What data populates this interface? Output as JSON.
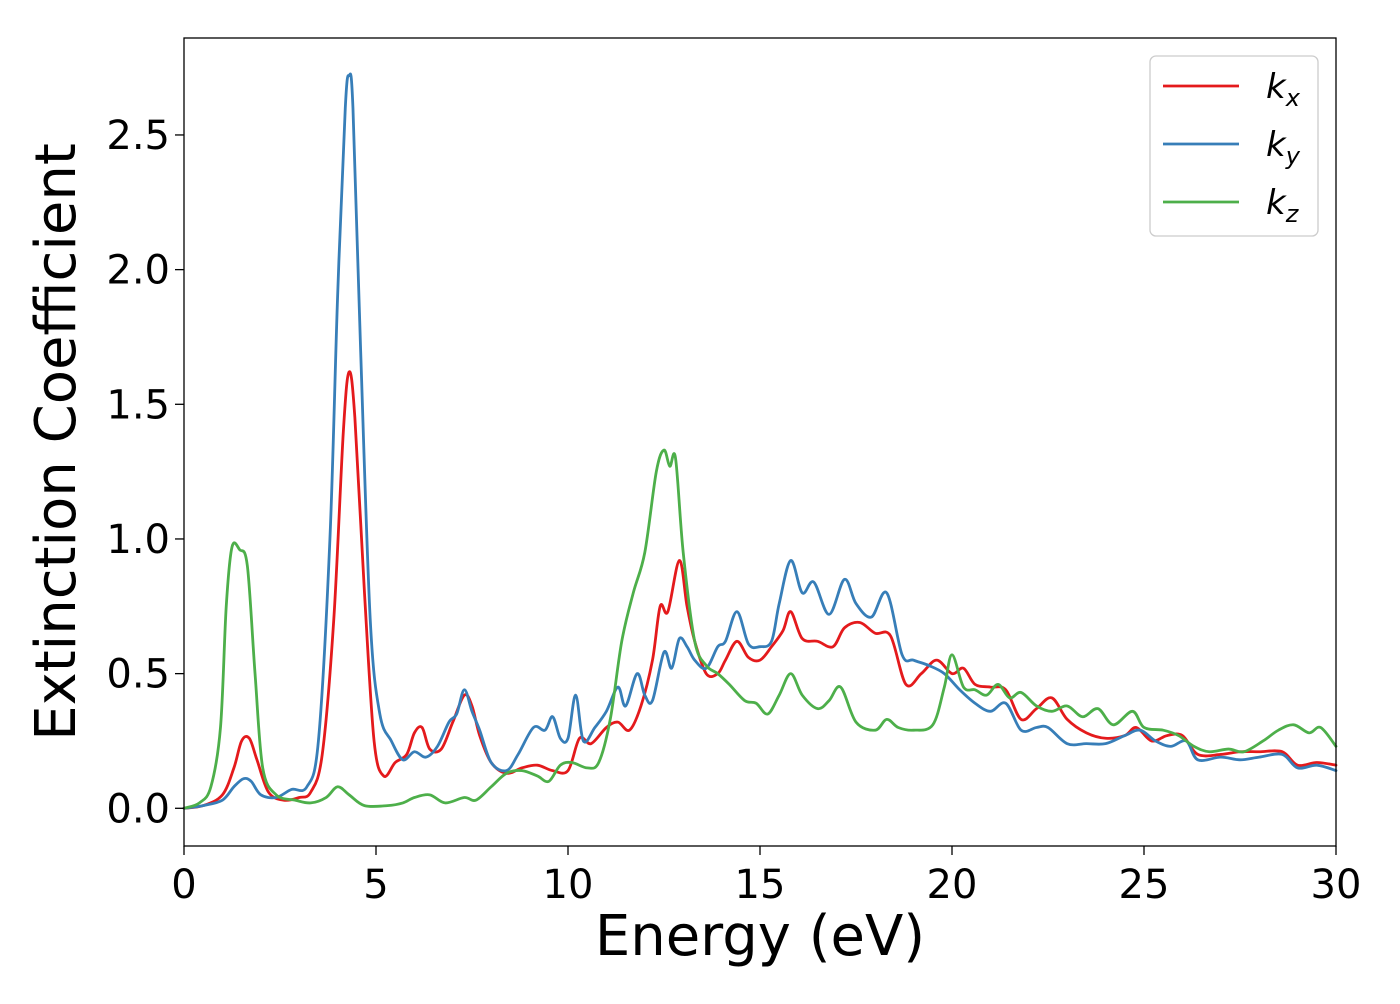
{
  "chart_data": {
    "type": "line",
    "title": "",
    "xlabel": "Energy (eV)",
    "ylabel": "Extinction Coefficient",
    "xlim": [
      0,
      30
    ],
    "ylim": [
      -0.14,
      2.86
    ],
    "xticks": [
      0,
      5,
      10,
      15,
      20,
      25,
      30
    ],
    "xtick_labels": [
      "0",
      "5",
      "10",
      "15",
      "20",
      "25",
      "30"
    ],
    "yticks": [
      0.0,
      0.5,
      1.0,
      1.5,
      2.0,
      2.5
    ],
    "ytick_labels": [
      "0.0",
      "0.5",
      "1.0",
      "1.5",
      "2.0",
      "2.5"
    ],
    "grid": false,
    "legend_position": "top-right",
    "series": [
      {
        "name": "k_x",
        "label_main": "k",
        "label_sub": "x",
        "color": "#e41a1c",
        "points": [
          [
            0,
            0
          ],
          [
            0.5,
            0.01
          ],
          [
            1.0,
            0.05
          ],
          [
            1.3,
            0.15
          ],
          [
            1.5,
            0.25
          ],
          [
            1.7,
            0.26
          ],
          [
            1.9,
            0.18
          ],
          [
            2.2,
            0.06
          ],
          [
            2.6,
            0.03
          ],
          [
            3.0,
            0.04
          ],
          [
            3.3,
            0.06
          ],
          [
            3.6,
            0.2
          ],
          [
            3.9,
            0.7
          ],
          [
            4.15,
            1.4
          ],
          [
            4.3,
            1.62
          ],
          [
            4.45,
            1.45
          ],
          [
            4.7,
            0.8
          ],
          [
            4.95,
            0.25
          ],
          [
            5.2,
            0.12
          ],
          [
            5.5,
            0.17
          ],
          [
            5.8,
            0.2
          ],
          [
            6.0,
            0.28
          ],
          [
            6.2,
            0.3
          ],
          [
            6.4,
            0.22
          ],
          [
            6.7,
            0.22
          ],
          [
            7.0,
            0.32
          ],
          [
            7.3,
            0.42
          ],
          [
            7.5,
            0.38
          ],
          [
            7.7,
            0.27
          ],
          [
            8.0,
            0.17
          ],
          [
            8.4,
            0.13
          ],
          [
            8.8,
            0.15
          ],
          [
            9.2,
            0.16
          ],
          [
            9.6,
            0.14
          ],
          [
            10.0,
            0.14
          ],
          [
            10.3,
            0.26
          ],
          [
            10.6,
            0.24
          ],
          [
            11.0,
            0.3
          ],
          [
            11.3,
            0.32
          ],
          [
            11.6,
            0.29
          ],
          [
            11.9,
            0.38
          ],
          [
            12.2,
            0.55
          ],
          [
            12.4,
            0.75
          ],
          [
            12.6,
            0.73
          ],
          [
            12.9,
            0.92
          ],
          [
            13.1,
            0.75
          ],
          [
            13.3,
            0.62
          ],
          [
            13.6,
            0.5
          ],
          [
            13.9,
            0.5
          ],
          [
            14.1,
            0.55
          ],
          [
            14.4,
            0.62
          ],
          [
            14.7,
            0.56
          ],
          [
            15.0,
            0.55
          ],
          [
            15.3,
            0.6
          ],
          [
            15.6,
            0.66
          ],
          [
            15.8,
            0.73
          ],
          [
            16.1,
            0.63
          ],
          [
            16.5,
            0.62
          ],
          [
            16.9,
            0.6
          ],
          [
            17.2,
            0.67
          ],
          [
            17.6,
            0.69
          ],
          [
            18.0,
            0.65
          ],
          [
            18.4,
            0.64
          ],
          [
            18.8,
            0.46
          ],
          [
            19.2,
            0.5
          ],
          [
            19.6,
            0.55
          ],
          [
            20.0,
            0.5
          ],
          [
            20.3,
            0.52
          ],
          [
            20.6,
            0.46
          ],
          [
            21.0,
            0.45
          ],
          [
            21.4,
            0.44
          ],
          [
            21.8,
            0.33
          ],
          [
            22.2,
            0.37
          ],
          [
            22.6,
            0.41
          ],
          [
            23.0,
            0.33
          ],
          [
            23.5,
            0.28
          ],
          [
            24.0,
            0.26
          ],
          [
            24.5,
            0.27
          ],
          [
            24.8,
            0.3
          ],
          [
            25.2,
            0.25
          ],
          [
            25.6,
            0.27
          ],
          [
            26.0,
            0.27
          ],
          [
            26.4,
            0.2
          ],
          [
            27.0,
            0.2
          ],
          [
            27.5,
            0.21
          ],
          [
            28.0,
            0.21
          ],
          [
            28.6,
            0.21
          ],
          [
            29.0,
            0.16
          ],
          [
            29.5,
            0.17
          ],
          [
            30.0,
            0.16
          ]
        ]
      },
      {
        "name": "k_y",
        "label_main": "k",
        "label_sub": "y",
        "color": "#377eb8",
        "points": [
          [
            0,
            0
          ],
          [
            0.5,
            0.01
          ],
          [
            1.0,
            0.03
          ],
          [
            1.3,
            0.08
          ],
          [
            1.55,
            0.11
          ],
          [
            1.75,
            0.1
          ],
          [
            2.0,
            0.05
          ],
          [
            2.4,
            0.04
          ],
          [
            2.8,
            0.07
          ],
          [
            3.2,
            0.08
          ],
          [
            3.5,
            0.25
          ],
          [
            3.8,
            1.0
          ],
          [
            4.0,
            1.9
          ],
          [
            4.2,
            2.6
          ],
          [
            4.3,
            2.72
          ],
          [
            4.4,
            2.6
          ],
          [
            4.6,
            1.7
          ],
          [
            4.85,
            0.7
          ],
          [
            5.1,
            0.35
          ],
          [
            5.4,
            0.25
          ],
          [
            5.7,
            0.18
          ],
          [
            6.0,
            0.21
          ],
          [
            6.3,
            0.19
          ],
          [
            6.6,
            0.23
          ],
          [
            6.9,
            0.32
          ],
          [
            7.1,
            0.35
          ],
          [
            7.3,
            0.44
          ],
          [
            7.5,
            0.36
          ],
          [
            7.7,
            0.29
          ],
          [
            8.0,
            0.17
          ],
          [
            8.4,
            0.14
          ],
          [
            8.7,
            0.2
          ],
          [
            9.1,
            0.3
          ],
          [
            9.4,
            0.29
          ],
          [
            9.6,
            0.34
          ],
          [
            9.8,
            0.26
          ],
          [
            10.0,
            0.26
          ],
          [
            10.2,
            0.42
          ],
          [
            10.4,
            0.25
          ],
          [
            10.7,
            0.3
          ],
          [
            11.0,
            0.36
          ],
          [
            11.3,
            0.45
          ],
          [
            11.5,
            0.38
          ],
          [
            11.8,
            0.5
          ],
          [
            12.0,
            0.42
          ],
          [
            12.2,
            0.4
          ],
          [
            12.5,
            0.58
          ],
          [
            12.7,
            0.52
          ],
          [
            12.9,
            0.63
          ],
          [
            13.1,
            0.6
          ],
          [
            13.3,
            0.55
          ],
          [
            13.6,
            0.52
          ],
          [
            13.9,
            0.6
          ],
          [
            14.1,
            0.62
          ],
          [
            14.4,
            0.73
          ],
          [
            14.7,
            0.61
          ],
          [
            15.0,
            0.6
          ],
          [
            15.3,
            0.62
          ],
          [
            15.5,
            0.76
          ],
          [
            15.8,
            0.92
          ],
          [
            16.1,
            0.8
          ],
          [
            16.4,
            0.84
          ],
          [
            16.8,
            0.72
          ],
          [
            17.2,
            0.85
          ],
          [
            17.5,
            0.76
          ],
          [
            17.9,
            0.71
          ],
          [
            18.3,
            0.8
          ],
          [
            18.7,
            0.57
          ],
          [
            19.0,
            0.55
          ],
          [
            19.4,
            0.53
          ],
          [
            19.8,
            0.5
          ],
          [
            20.2,
            0.44
          ],
          [
            20.6,
            0.39
          ],
          [
            21.0,
            0.36
          ],
          [
            21.4,
            0.39
          ],
          [
            21.8,
            0.29
          ],
          [
            22.2,
            0.3
          ],
          [
            22.5,
            0.3
          ],
          [
            23.0,
            0.24
          ],
          [
            23.5,
            0.24
          ],
          [
            24.0,
            0.24
          ],
          [
            24.5,
            0.27
          ],
          [
            24.9,
            0.29
          ],
          [
            25.3,
            0.25
          ],
          [
            25.7,
            0.23
          ],
          [
            26.1,
            0.25
          ],
          [
            26.4,
            0.18
          ],
          [
            27.0,
            0.19
          ],
          [
            27.5,
            0.18
          ],
          [
            28.0,
            0.19
          ],
          [
            28.6,
            0.2
          ],
          [
            29.0,
            0.15
          ],
          [
            29.5,
            0.16
          ],
          [
            30.0,
            0.14
          ]
        ]
      },
      {
        "name": "k_z",
        "label_main": "k",
        "label_sub": "z",
        "color": "#4daf4a",
        "points": [
          [
            0,
            0
          ],
          [
            0.4,
            0.02
          ],
          [
            0.7,
            0.08
          ],
          [
            0.95,
            0.3
          ],
          [
            1.1,
            0.75
          ],
          [
            1.25,
            0.97
          ],
          [
            1.45,
            0.96
          ],
          [
            1.65,
            0.9
          ],
          [
            1.85,
            0.5
          ],
          [
            2.05,
            0.15
          ],
          [
            2.4,
            0.05
          ],
          [
            2.9,
            0.03
          ],
          [
            3.3,
            0.02
          ],
          [
            3.7,
            0.04
          ],
          [
            4.0,
            0.08
          ],
          [
            4.3,
            0.05
          ],
          [
            4.7,
            0.01
          ],
          [
            5.3,
            0.01
          ],
          [
            5.7,
            0.02
          ],
          [
            6.0,
            0.04
          ],
          [
            6.4,
            0.05
          ],
          [
            6.8,
            0.02
          ],
          [
            7.3,
            0.04
          ],
          [
            7.6,
            0.03
          ],
          [
            8.0,
            0.08
          ],
          [
            8.4,
            0.13
          ],
          [
            8.8,
            0.14
          ],
          [
            9.2,
            0.12
          ],
          [
            9.5,
            0.1
          ],
          [
            9.8,
            0.16
          ],
          [
            10.1,
            0.17
          ],
          [
            10.5,
            0.15
          ],
          [
            10.8,
            0.17
          ],
          [
            11.1,
            0.33
          ],
          [
            11.4,
            0.62
          ],
          [
            11.7,
            0.8
          ],
          [
            12.0,
            0.95
          ],
          [
            12.3,
            1.25
          ],
          [
            12.5,
            1.33
          ],
          [
            12.65,
            1.27
          ],
          [
            12.8,
            1.3
          ],
          [
            13.0,
            0.95
          ],
          [
            13.3,
            0.62
          ],
          [
            13.6,
            0.53
          ],
          [
            13.9,
            0.5
          ],
          [
            14.2,
            0.46
          ],
          [
            14.6,
            0.4
          ],
          [
            14.9,
            0.39
          ],
          [
            15.2,
            0.35
          ],
          [
            15.5,
            0.42
          ],
          [
            15.8,
            0.5
          ],
          [
            16.1,
            0.42
          ],
          [
            16.5,
            0.37
          ],
          [
            16.8,
            0.4
          ],
          [
            17.1,
            0.45
          ],
          [
            17.5,
            0.32
          ],
          [
            18.0,
            0.29
          ],
          [
            18.3,
            0.33
          ],
          [
            18.6,
            0.3
          ],
          [
            19.0,
            0.29
          ],
          [
            19.5,
            0.31
          ],
          [
            19.8,
            0.45
          ],
          [
            20.0,
            0.57
          ],
          [
            20.3,
            0.45
          ],
          [
            20.6,
            0.44
          ],
          [
            20.9,
            0.42
          ],
          [
            21.2,
            0.46
          ],
          [
            21.5,
            0.41
          ],
          [
            21.8,
            0.43
          ],
          [
            22.2,
            0.38
          ],
          [
            22.6,
            0.36
          ],
          [
            23.0,
            0.38
          ],
          [
            23.4,
            0.34
          ],
          [
            23.8,
            0.37
          ],
          [
            24.2,
            0.31
          ],
          [
            24.7,
            0.36
          ],
          [
            25.0,
            0.3
          ],
          [
            25.5,
            0.29
          ],
          [
            25.9,
            0.27
          ],
          [
            26.3,
            0.23
          ],
          [
            26.7,
            0.21
          ],
          [
            27.2,
            0.22
          ],
          [
            27.6,
            0.21
          ],
          [
            28.1,
            0.25
          ],
          [
            28.5,
            0.29
          ],
          [
            28.9,
            0.31
          ],
          [
            29.3,
            0.28
          ],
          [
            29.6,
            0.3
          ],
          [
            30.0,
            0.23
          ]
        ]
      }
    ]
  }
}
